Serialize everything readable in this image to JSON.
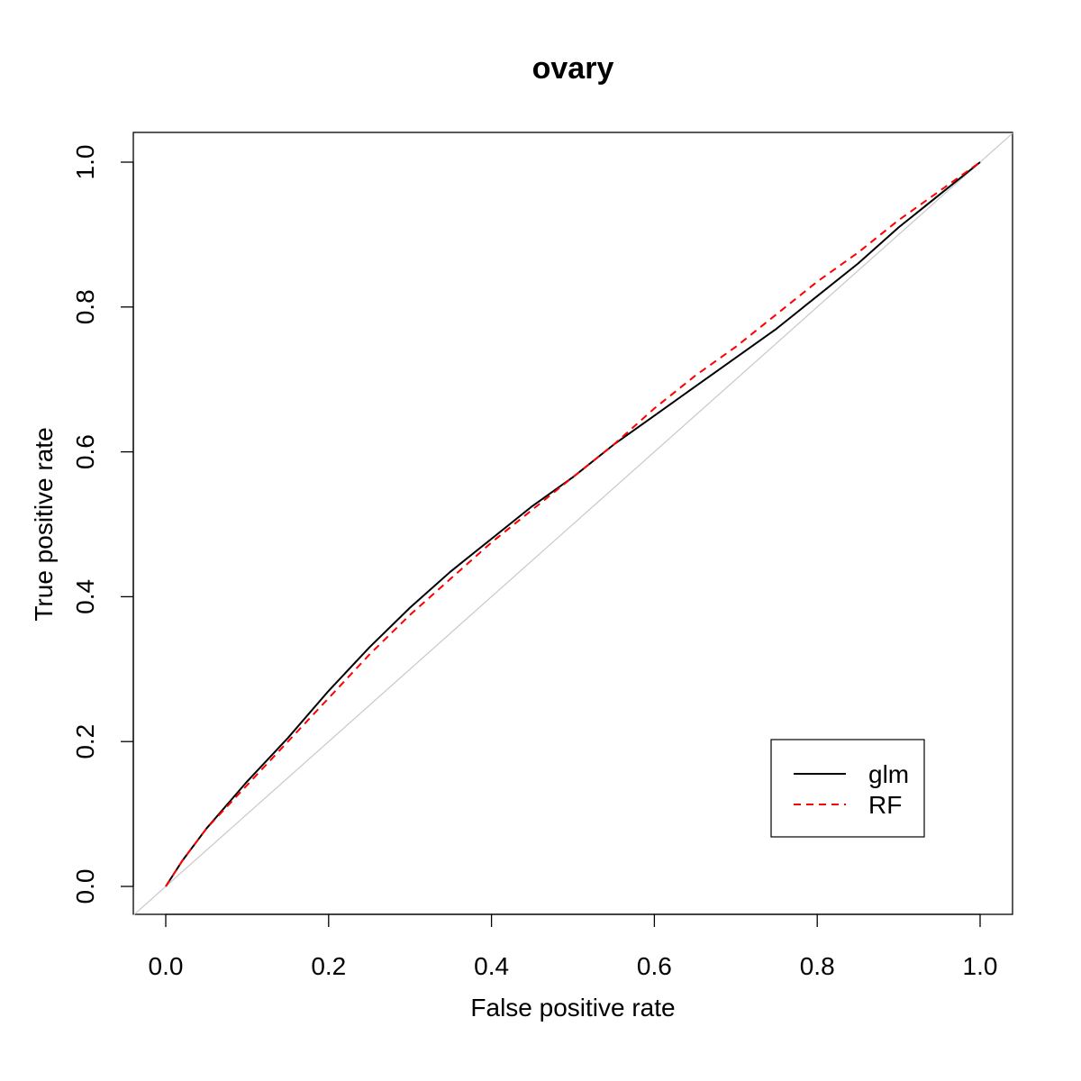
{
  "chart_data": {
    "type": "line",
    "title": "ovary",
    "xlabel": "False positive rate",
    "ylabel": "True positive rate",
    "xlim": [
      0,
      1
    ],
    "ylim": [
      0,
      1
    ],
    "x_ticks": [
      "0.0",
      "0.2",
      "0.4",
      "0.6",
      "0.8",
      "1.0"
    ],
    "y_ticks": [
      "0.0",
      "0.2",
      "0.4",
      "0.6",
      "0.8",
      "1.0"
    ],
    "grid": false,
    "legend_position": "bottom-right",
    "diagonal_reference": {
      "color": "#c8c8c8",
      "from": [
        0,
        0
      ],
      "to": [
        1,
        1
      ]
    },
    "series": [
      {
        "name": "glm",
        "color": "#000000",
        "style": "solid",
        "x": [
          0,
          0.02,
          0.05,
          0.1,
          0.15,
          0.2,
          0.25,
          0.3,
          0.35,
          0.4,
          0.45,
          0.5,
          0.55,
          0.6,
          0.65,
          0.7,
          0.75,
          0.8,
          0.85,
          0.9,
          0.95,
          1.0
        ],
        "values": [
          0,
          0.035,
          0.08,
          0.145,
          0.205,
          0.27,
          0.33,
          0.385,
          0.435,
          0.48,
          0.525,
          0.565,
          0.61,
          0.65,
          0.69,
          0.73,
          0.77,
          0.815,
          0.86,
          0.91,
          0.955,
          1.0
        ]
      },
      {
        "name": "RF",
        "color": "#ff0000",
        "style": "dashed",
        "x": [
          0,
          0.02,
          0.05,
          0.1,
          0.15,
          0.2,
          0.25,
          0.3,
          0.35,
          0.4,
          0.45,
          0.5,
          0.55,
          0.6,
          0.65,
          0.7,
          0.75,
          0.8,
          0.85,
          0.9,
          0.95,
          1.0
        ],
        "values": [
          0,
          0.035,
          0.08,
          0.14,
          0.2,
          0.26,
          0.32,
          0.375,
          0.425,
          0.475,
          0.52,
          0.565,
          0.61,
          0.66,
          0.705,
          0.745,
          0.79,
          0.835,
          0.875,
          0.92,
          0.96,
          1.0
        ]
      }
    ]
  }
}
